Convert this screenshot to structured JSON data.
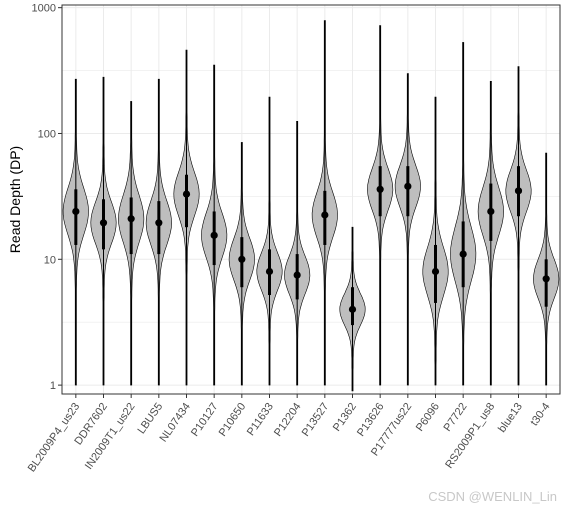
{
  "chart_data": {
    "type": "violin",
    "ylabel": "Read Depth (DP)",
    "xlabel": "",
    "y_scale": "log10",
    "ylim": [
      0.85,
      1050
    ],
    "y_ticks": [
      1,
      10,
      100,
      1000
    ],
    "y_tick_labels": [
      "1",
      "10",
      "100",
      "1000"
    ],
    "grid": true,
    "legend": "none",
    "categories": [
      "BL2009P4_us23",
      "DDR7602",
      "IN2009T1_us22",
      "LBUS5",
      "NL07434",
      "P10127",
      "P10650",
      "P11633",
      "P12204",
      "P13527",
      "P1362",
      "P13626",
      "P17777us22",
      "P6096",
      "P7722",
      "RS2009P1_us8",
      "blue13",
      "t30-4"
    ],
    "medians": [
      24,
      19.5,
      21,
      19.5,
      33,
      15.5,
      10,
      8,
      7.5,
      22.5,
      4,
      36,
      38,
      8,
      11,
      24,
      35,
      7
    ],
    "whisker_max": [
      270,
      280,
      180,
      270,
      460,
      350,
      85,
      195,
      125,
      790,
      18,
      720,
      300,
      195,
      530,
      260,
      340,
      70
    ],
    "whisker_min": [
      1,
      1,
      1,
      1,
      1,
      1,
      1,
      1,
      1,
      1,
      0.9,
      1,
      1,
      1,
      1,
      1,
      1,
      1
    ],
    "box_q1": [
      13,
      12,
      11,
      11,
      18,
      9,
      6,
      5.2,
      4.8,
      13,
      3,
      22,
      22,
      4.5,
      6,
      14,
      22,
      4.2
    ],
    "box_q3": [
      36,
      30,
      31,
      29,
      47,
      24,
      15,
      12,
      11,
      35,
      6,
      55,
      55,
      13,
      20,
      40,
      55,
      10
    ],
    "colors": {
      "violin_fill": "#bebebe",
      "violin_stroke": "#000000",
      "median_point": "#000000",
      "grid": "#ebebeb",
      "panel_border": "#333333"
    }
  },
  "watermark": "CSDN @WENLIN_Lin"
}
